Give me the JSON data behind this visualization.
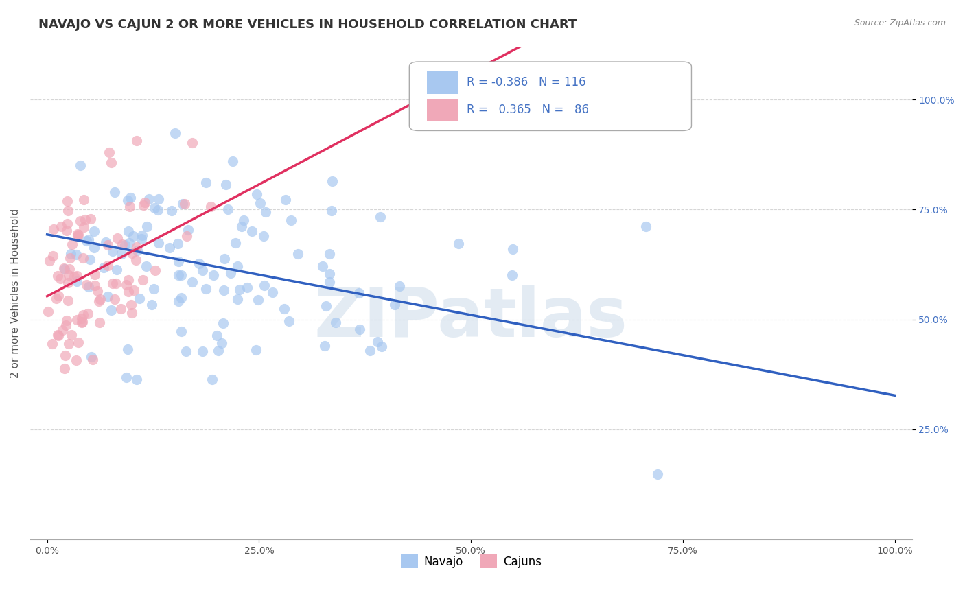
{
  "title": "NAVAJO VS CAJUN 2 OR MORE VEHICLES IN HOUSEHOLD CORRELATION CHART",
  "source": "Source: ZipAtlas.com",
  "xlabel": "",
  "ylabel": "2 or more Vehicles in Household",
  "navajo_R": -0.386,
  "navajo_N": 116,
  "cajun_R": 0.365,
  "cajun_N": 86,
  "navajo_color": "#a8c8f0",
  "cajun_color": "#f0a8b8",
  "navajo_line_color": "#3060c0",
  "cajun_line_color": "#e03060",
  "background_color": "#ffffff",
  "grid_color": "#cccccc",
  "watermark_color": "#c8d8e8",
  "watermark_text": "ZIPatlas",
  "title_fontsize": 13,
  "axis_label_fontsize": 11,
  "tick_fontsize": 10
}
